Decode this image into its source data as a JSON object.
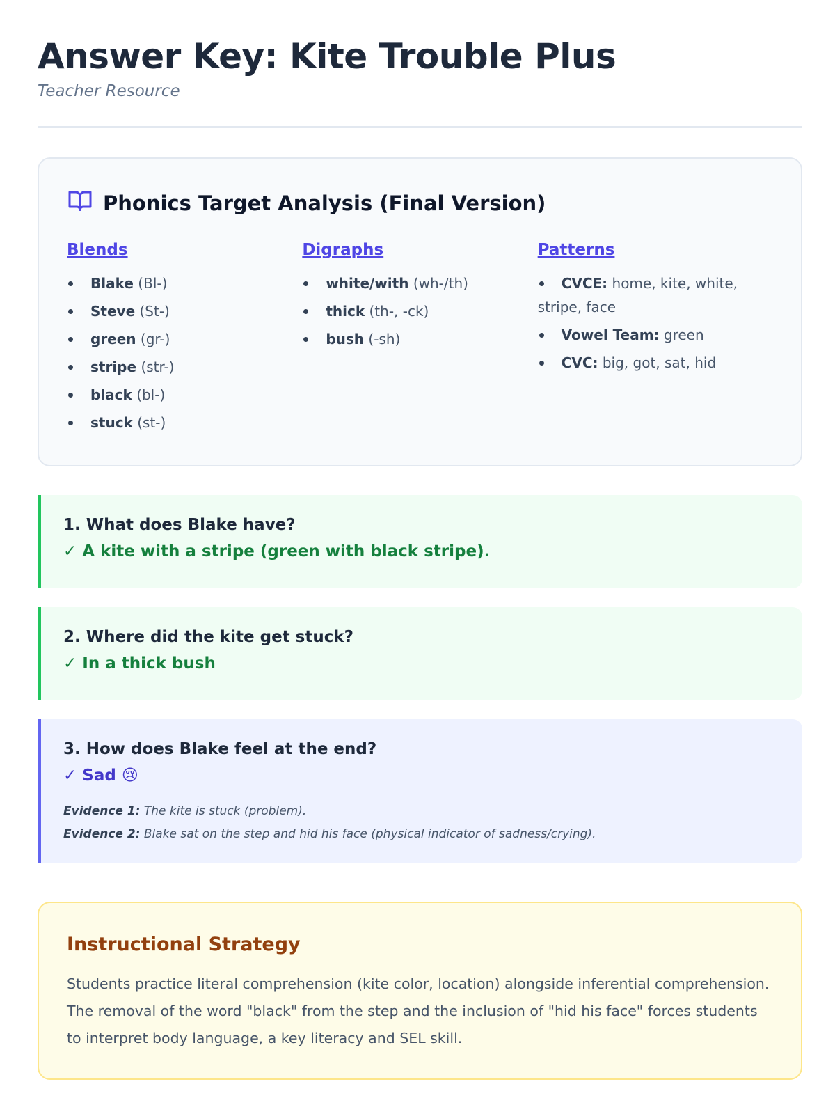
{
  "header": {
    "title": "Answer Key: Kite Trouble Plus",
    "subtitle": "Teacher Resource"
  },
  "phonics": {
    "icon": "book-open-icon",
    "title": "Phonics Target Analysis (Final Version)",
    "columns": [
      {
        "heading": "Blends",
        "items": [
          {
            "word": "Blake",
            "note": "(Bl-)"
          },
          {
            "word": "Steve",
            "note": "(St-)"
          },
          {
            "word": "green",
            "note": "(gr-)"
          },
          {
            "word": "stripe",
            "note": "(str-)"
          },
          {
            "word": "black",
            "note": "(bl-)"
          },
          {
            "word": "stuck",
            "note": "(st-)"
          }
        ]
      },
      {
        "heading": "Digraphs",
        "items": [
          {
            "word": "white/with",
            "note": "(wh-/th)"
          },
          {
            "word": "thick",
            "note": "(th-, -ck)"
          },
          {
            "word": "bush",
            "note": "(-sh)"
          }
        ]
      },
      {
        "heading": "Patterns",
        "items": [
          {
            "word": "CVCE:",
            "note": "home, kite, white, stripe, face"
          },
          {
            "word": "Vowel Team:",
            "note": "green"
          },
          {
            "word": "CVC:",
            "note": "big, got, sat, hid"
          }
        ]
      }
    ]
  },
  "questions": [
    {
      "question": "1. What does Blake have?",
      "answer": "✓ A kite with a stripe (green with black stripe)."
    },
    {
      "question": "2. Where did the kite get stuck?",
      "answer": "✓ In a thick bush"
    },
    {
      "question": "3. How does Blake feel at the end?",
      "answer": "✓ Sad 😢",
      "evidence": [
        {
          "label": "Evidence 1:",
          "text": "The kite is stuck (problem)."
        },
        {
          "label": "Evidence 2:",
          "text": "Blake sat on the step and hid his face (physical indicator of sadness/crying)."
        }
      ]
    }
  ],
  "strategy": {
    "title": "Instructional Strategy",
    "body": "Students practice literal comprehension (kite color, location) alongside inferential comprehension. The removal of the word \"black\" from the step and the inclusion of \"hid his face\" forces students to interpret body language, a key literacy and SEL skill."
  },
  "colors": {
    "accent": "#4f46e5",
    "correct": "#22c55e",
    "inferential": "#6366f1",
    "strategy": "#92400e"
  }
}
